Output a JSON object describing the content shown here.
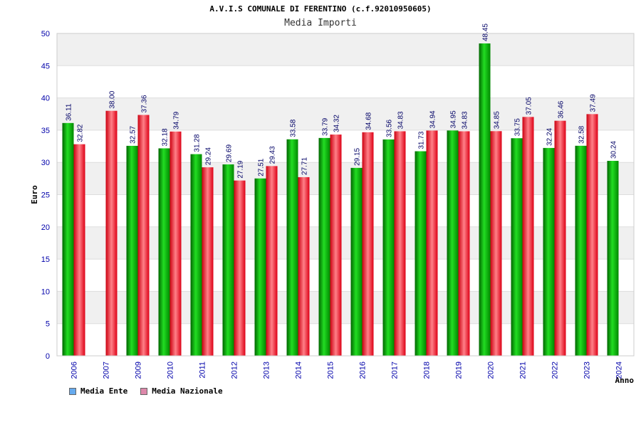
{
  "chart_data": {
    "type": "bar",
    "title": "A.V.I.S COMUNALE DI FERENTINO (c.f.92010950605)",
    "subtitle": "Media Importi",
    "ylabel": "Euro",
    "xlabel": "Anno",
    "ylim": [
      0,
      50
    ],
    "yticks": [
      0,
      5,
      10,
      15,
      20,
      25,
      30,
      35,
      40,
      45,
      50
    ],
    "categories": [
      "2006",
      "2007",
      "2009",
      "2010",
      "2011",
      "2012",
      "2013",
      "2014",
      "2015",
      "2016",
      "2017",
      "2018",
      "2019",
      "2020",
      "2021",
      "2022",
      "2023",
      "2024"
    ],
    "series": [
      {
        "name": "Media Ente",
        "color": "#00a000",
        "legend_color": "#66aaee",
        "values": [
          36.11,
          null,
          32.57,
          32.18,
          31.28,
          29.69,
          27.51,
          33.58,
          33.79,
          29.15,
          33.56,
          31.73,
          34.95,
          48.45,
          33.75,
          32.24,
          32.58,
          30.24
        ]
      },
      {
        "name": "Media Nazionale",
        "color": "#e01020",
        "legend_color": "#dd88aa",
        "values": [
          32.82,
          38.0,
          37.36,
          34.79,
          29.24,
          27.19,
          29.43,
          27.71,
          34.32,
          34.68,
          34.83,
          34.94,
          34.83,
          34.85,
          37.05,
          36.46,
          37.49,
          null
        ]
      }
    ],
    "grid": true,
    "legend_position": "bottom-left"
  }
}
